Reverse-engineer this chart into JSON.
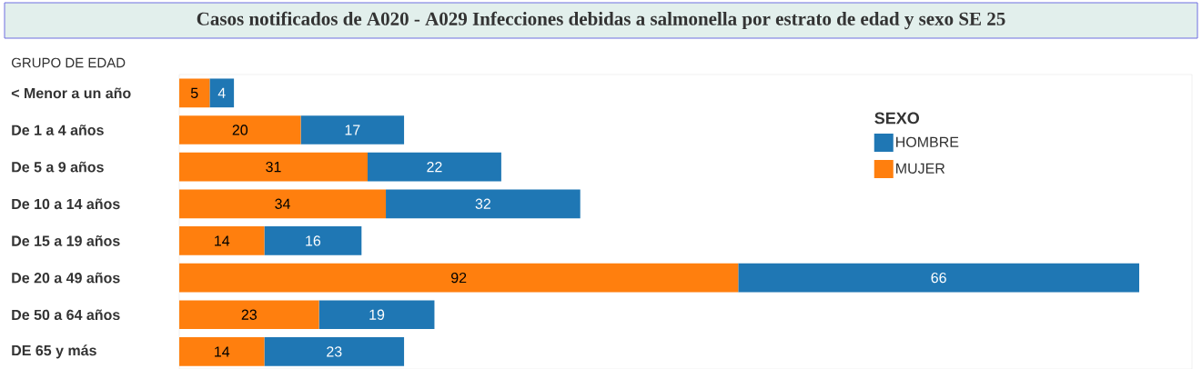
{
  "chart_data": {
    "type": "bar",
    "orientation": "horizontal",
    "stacked": true,
    "title": "Casos notificados de A020 - A029 Infecciones debidas a salmonella por estrato de edad y sexo SE 25",
    "ylabel": "GRUPO DE EDAD",
    "legend_title": "SEXO",
    "legend": "top right",
    "data_labels": true,
    "tick_labels": "y",
    "categories": [
      "< Menor a un año",
      "De 1 a 4 años",
      "De 5 a 9 años",
      "De 10 a 14 años",
      "De 15 a 19 años",
      "De 20 a 49 años",
      "De 50 a 64 años",
      "DE 65 y más"
    ],
    "series": [
      {
        "name": "MUJER",
        "color": "#ff7f0e",
        "values": [
          5,
          20,
          31,
          34,
          14,
          92,
          23,
          14
        ]
      },
      {
        "name": "HOMBRE",
        "color": "#1f77b4",
        "values": [
          4,
          17,
          22,
          32,
          16,
          66,
          19,
          23
        ]
      }
    ]
  }
}
